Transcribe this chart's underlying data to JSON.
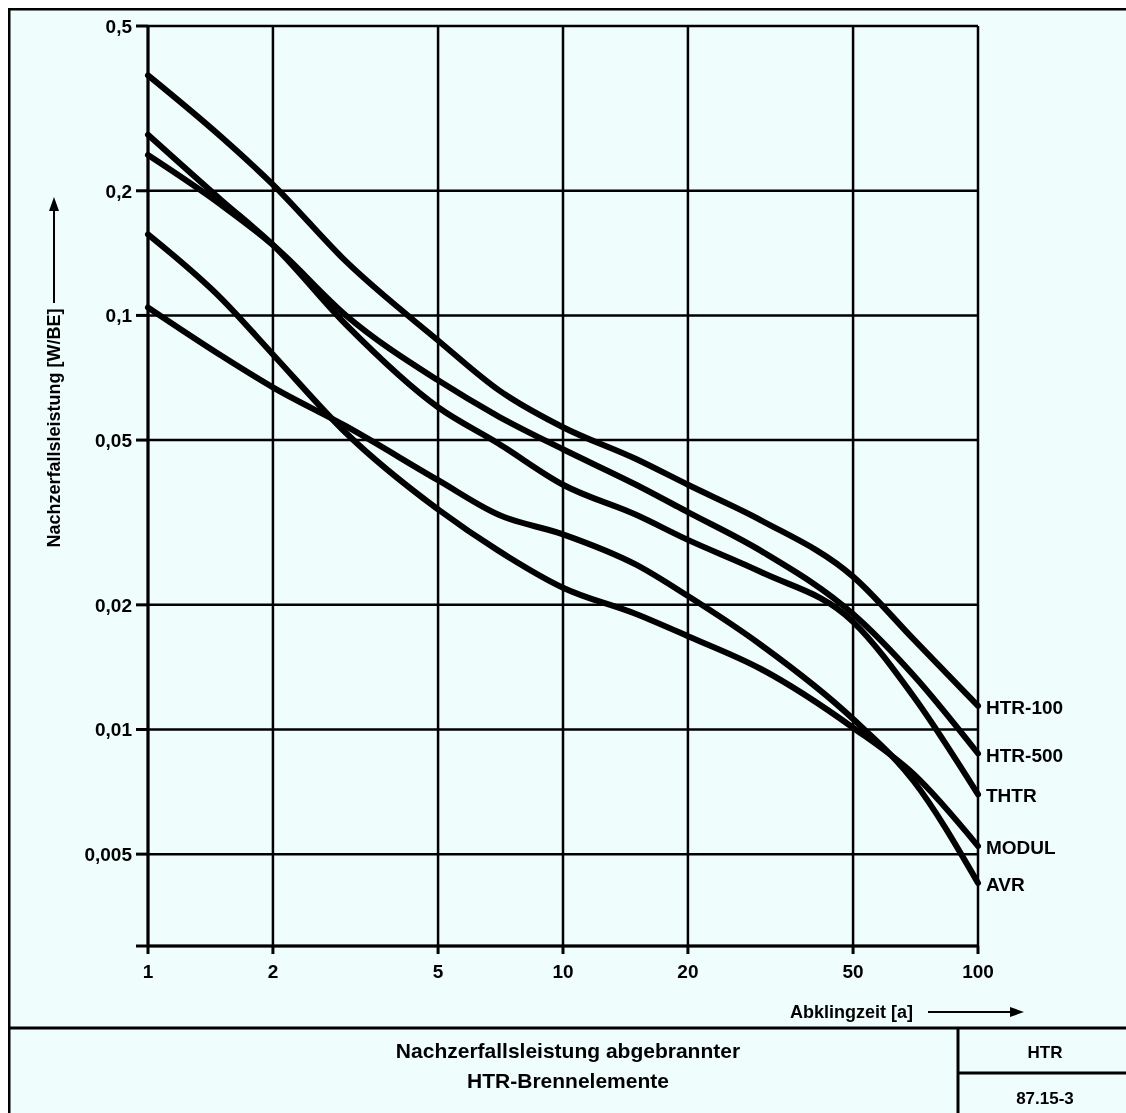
{
  "chart_data": {
    "type": "line",
    "title": "Nachzerfallsleistung abgebrannter\nHTR-Brennelemente",
    "xlabel": "Abklingzeit [a]",
    "ylabel": "Nachzerfallsleistung [W/BE]",
    "annotations": [
      "HTR",
      "87.15-3"
    ],
    "x": [
      1,
      1.5,
      2,
      3,
      5,
      7,
      10,
      15,
      20,
      30,
      50,
      70,
      100
    ],
    "series": [
      {
        "name": "HTR-100",
        "color": "#000000",
        "values": [
          0.38,
          0.27,
          0.207,
          0.135,
          0.087,
          0.066,
          0.0537,
          0.045,
          0.039,
          0.032,
          0.0234,
          0.0165,
          0.0114
        ]
      },
      {
        "name": "HTR-500",
        "color": "#000000",
        "values": [
          0.244,
          0.185,
          0.148,
          0.1,
          0.0697,
          0.057,
          0.0475,
          0.039,
          0.0335,
          0.027,
          0.019,
          0.0135,
          0.00875
        ]
      },
      {
        "name": "THTR",
        "color": "#000000",
        "values": [
          0.273,
          0.19,
          0.148,
          0.095,
          0.06,
          0.049,
          0.039,
          0.033,
          0.0287,
          0.024,
          0.0182,
          0.012,
          0.00697
        ]
      },
      {
        "name": "MODUL",
        "color": "#000000",
        "values": [
          0.157,
          0.11,
          0.0805,
          0.052,
          0.034,
          0.027,
          0.022,
          0.019,
          0.0168,
          0.014,
          0.0101,
          0.0078,
          0.00523
        ]
      },
      {
        "name": "AVR",
        "color": "#000000",
        "values": [
          0.1045,
          0.08,
          0.067,
          0.054,
          0.04,
          0.033,
          0.0296,
          0.025,
          0.021,
          0.016,
          0.0106,
          0.0075,
          0.00426
        ]
      }
    ],
    "xlim": [
      1,
      100
    ],
    "ylim": [
      0.003,
      0.5
    ],
    "xticks": [
      1,
      2,
      5,
      10,
      20,
      50,
      100
    ],
    "yticks": [
      {
        "value": 0.003,
        "label": null
      },
      {
        "value": 0.005,
        "label": "0,005"
      },
      {
        "value": 0.01,
        "label": "0,01"
      },
      {
        "value": 0.02,
        "label": "0,02"
      },
      {
        "value": 0.05,
        "label": "0,05"
      },
      {
        "value": 0.1,
        "label": "0,1"
      },
      {
        "value": 0.2,
        "label": "0,2"
      },
      {
        "value": 0.5,
        "label": "0,5"
      }
    ],
    "log": "xy",
    "grid": true,
    "marker": "none",
    "line_style": "solid"
  }
}
